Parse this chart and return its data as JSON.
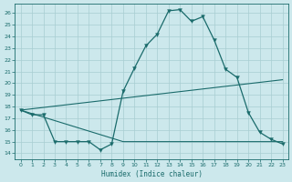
{
  "xlabel": "Humidex (Indice chaleur)",
  "bg_color": "#cce8ec",
  "line_color": "#1a6b6b",
  "grid_color": "#a8cdd1",
  "xlim": [
    -0.5,
    23.5
  ],
  "ylim": [
    13.5,
    26.8
  ],
  "yticks": [
    14,
    15,
    16,
    17,
    18,
    19,
    20,
    21,
    22,
    23,
    24,
    25,
    26
  ],
  "xticks": [
    0,
    1,
    2,
    3,
    4,
    5,
    6,
    7,
    8,
    9,
    10,
    11,
    12,
    13,
    14,
    15,
    16,
    17,
    18,
    19,
    20,
    21,
    22,
    23
  ],
  "series1_x": [
    0,
    1,
    2,
    3,
    4,
    5,
    6,
    7,
    8,
    9,
    10,
    11,
    12,
    13,
    14,
    15,
    16,
    17,
    18,
    19,
    20,
    21,
    22,
    23
  ],
  "series1_y": [
    17.7,
    17.3,
    17.3,
    15.0,
    15.0,
    15.0,
    15.0,
    14.3,
    14.8,
    19.3,
    21.3,
    23.2,
    24.2,
    26.2,
    26.3,
    25.3,
    25.7,
    23.7,
    21.2,
    20.5,
    17.5,
    15.8,
    15.2,
    14.8
  ],
  "series2_x": [
    0,
    23
  ],
  "series2_y": [
    17.7,
    20.3
  ],
  "series3_x": [
    0,
    9,
    22,
    23
  ],
  "series3_y": [
    17.7,
    15.0,
    15.0,
    15.0
  ]
}
